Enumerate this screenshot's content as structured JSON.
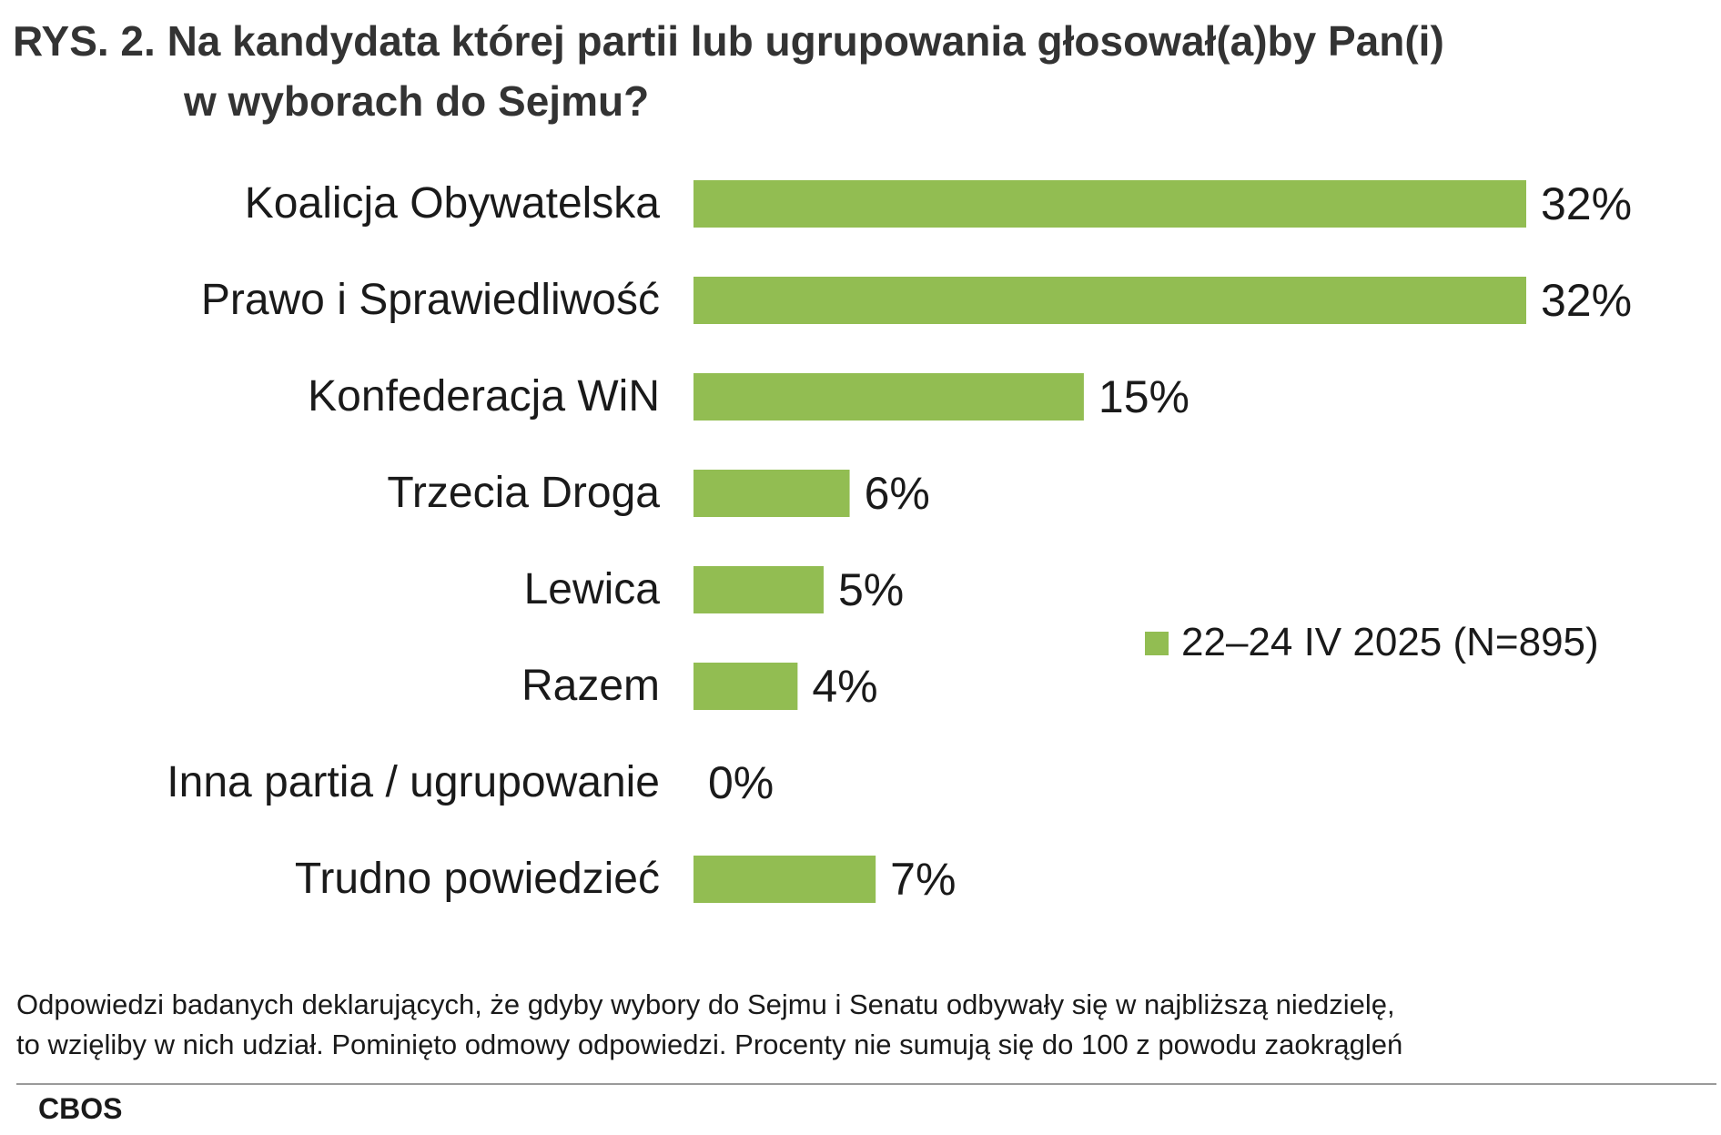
{
  "title": {
    "line1": "RYS. 2. Na kandydata której partii lub ugrupowania głosował(a)by Pan(i)",
    "line2": "w wyborach do Sejmu?"
  },
  "chart_data": {
    "type": "bar",
    "orientation": "horizontal",
    "categories": [
      "Koalicja Obywatelska",
      "Prawo i Sprawiedliwość",
      "Konfederacja WiN",
      "Trzecia Droga",
      "Lewica",
      "Razem",
      "Inna partia / ugrupowanie",
      "Trudno powiedzieć"
    ],
    "series": [
      {
        "name": "22–24 IV 2025 (N=895)",
        "values": [
          32,
          32,
          15,
          6,
          5,
          4,
          0,
          7
        ],
        "color": "#92bd52"
      }
    ],
    "value_suffix": "%",
    "xlim": [
      0,
      32
    ],
    "grid": false,
    "legend_position": "right"
  },
  "footnote": {
    "line1": "Odpowiedzi badanych deklarujących, że gdyby wybory do Sejmu i Senatu odbywały się w najbliższą niedzielę,",
    "line2": "to wzięliby w nich udział. Pominięto odmowy odpowiedzi. Procenty nie sumują się do 100 z powodu zaokrągleń"
  },
  "source": "CBOS"
}
